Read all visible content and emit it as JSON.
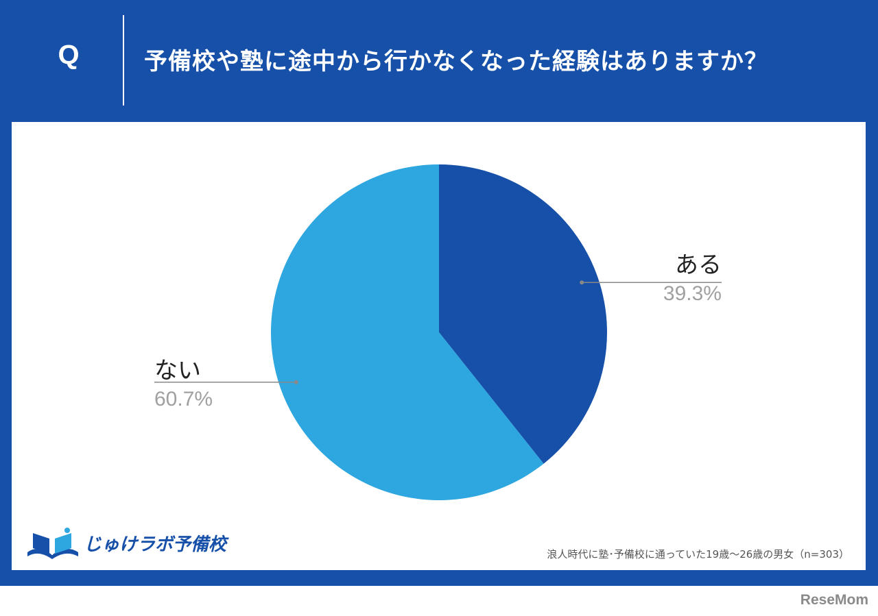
{
  "header": {
    "q_label": "Q",
    "question": "予備校や塾に途中から行かなくなった経験はありますか？"
  },
  "colors": {
    "frame": "#1650a8",
    "slice_aru": "#1650a8",
    "slice_nai": "#2ea6e0",
    "leader": "#888888",
    "label": "#222222",
    "percent": "#a0a0a0"
  },
  "chart_data": {
    "type": "pie",
    "start_angle_deg": 0,
    "direction": "clockwise",
    "slices": [
      {
        "label": "ある",
        "value": 39.3,
        "value_label": "39.3%",
        "color": "#1650a8"
      },
      {
        "label": "ない",
        "value": 60.7,
        "value_label": "60.7%",
        "color": "#2ea6e0"
      }
    ]
  },
  "footer": {
    "logo_text": "じゅけラボ予備校",
    "source_note": "浪人時代に塾･予備校に通っていた19歳～26歳の男女（n=303）",
    "publisher": "ReseMom"
  }
}
